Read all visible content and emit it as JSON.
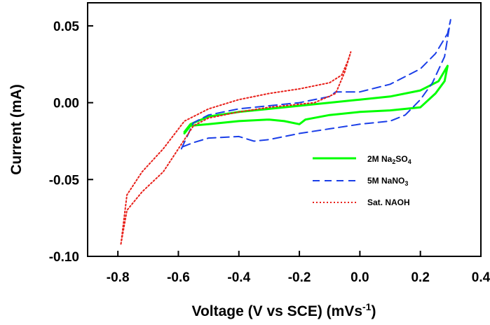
{
  "chart_data": {
    "type": "line",
    "title": "",
    "xlabel": "Voltage (V vs SCE) (mVs",
    "xlabel_sup": "-1",
    "xlabel_end": ")",
    "ylabel": "Current (mA)",
    "xlim": [
      -0.9,
      0.4
    ],
    "ylim": [
      -0.1,
      0.065
    ],
    "xticks": [
      "-0.8",
      "-0.6",
      "-0.4",
      "-0.2",
      "0.0",
      "0.2",
      "0.4"
    ],
    "yticks": [
      "0.05",
      "0.00",
      "-0.05",
      "-0.10"
    ],
    "grid": false,
    "legend_position": "right",
    "series": [
      {
        "name": "2M Na2SO4",
        "label_main": "2M Na",
        "label_sub1": "2",
        "label_mid": "SO",
        "label_sub2": "4",
        "color": "#00ff00",
        "style": "solid",
        "x": [
          -0.58,
          -0.56,
          -0.5,
          -0.4,
          -0.3,
          -0.2,
          -0.1,
          0.0,
          0.1,
          0.2,
          0.26,
          0.29,
          0.28,
          0.25,
          0.2,
          0.1,
          0.0,
          -0.1,
          -0.18,
          -0.2,
          -0.25,
          -0.3,
          -0.4,
          -0.5,
          -0.56,
          -0.58
        ],
        "y": [
          -0.019,
          -0.014,
          -0.009,
          -0.006,
          -0.004,
          -0.002,
          0.0,
          0.002,
          0.004,
          0.008,
          0.014,
          0.024,
          0.014,
          0.006,
          -0.003,
          -0.005,
          -0.006,
          -0.008,
          -0.011,
          -0.014,
          -0.012,
          -0.011,
          -0.012,
          -0.014,
          -0.015,
          -0.02
        ]
      },
      {
        "name": "5M NaNO3",
        "label_main": "5M NaNO",
        "label_sub": "3",
        "color": "#1a3ee8",
        "style": "dashed",
        "x": [
          -0.59,
          -0.55,
          -0.5,
          -0.4,
          -0.3,
          -0.2,
          -0.1,
          -0.08,
          0.0,
          0.1,
          0.2,
          0.25,
          0.29,
          0.3,
          0.28,
          0.24,
          0.2,
          0.15,
          0.1,
          0.0,
          -0.1,
          -0.2,
          -0.3,
          -0.35,
          -0.4,
          -0.5,
          -0.55,
          -0.59
        ],
        "y": [
          -0.03,
          -0.013,
          -0.008,
          -0.004,
          -0.002,
          0.0,
          0.004,
          0.007,
          0.007,
          0.012,
          0.022,
          0.032,
          0.045,
          0.054,
          0.03,
          0.013,
          0.002,
          -0.008,
          -0.012,
          -0.014,
          -0.017,
          -0.02,
          -0.024,
          -0.025,
          -0.022,
          -0.023,
          -0.026,
          -0.029
        ]
      },
      {
        "name": "Sat. NAOH",
        "label_main": "Sat. NAOH",
        "color": "#e8201a",
        "style": "dotted",
        "x": [
          -0.79,
          -0.77,
          -0.72,
          -0.65,
          -0.58,
          -0.5,
          -0.4,
          -0.3,
          -0.2,
          -0.1,
          -0.06,
          -0.04,
          -0.03,
          -0.05,
          -0.08,
          -0.15,
          -0.3,
          -0.4,
          -0.5,
          -0.55,
          -0.6,
          -0.65,
          -0.72,
          -0.77,
          -0.79
        ],
        "y": [
          -0.092,
          -0.06,
          -0.045,
          -0.03,
          -0.012,
          -0.004,
          0.002,
          0.006,
          0.009,
          0.013,
          0.018,
          0.027,
          0.033,
          0.02,
          0.006,
          0.0,
          -0.003,
          -0.006,
          -0.01,
          -0.015,
          -0.03,
          -0.045,
          -0.058,
          -0.07,
          -0.092
        ]
      }
    ]
  }
}
